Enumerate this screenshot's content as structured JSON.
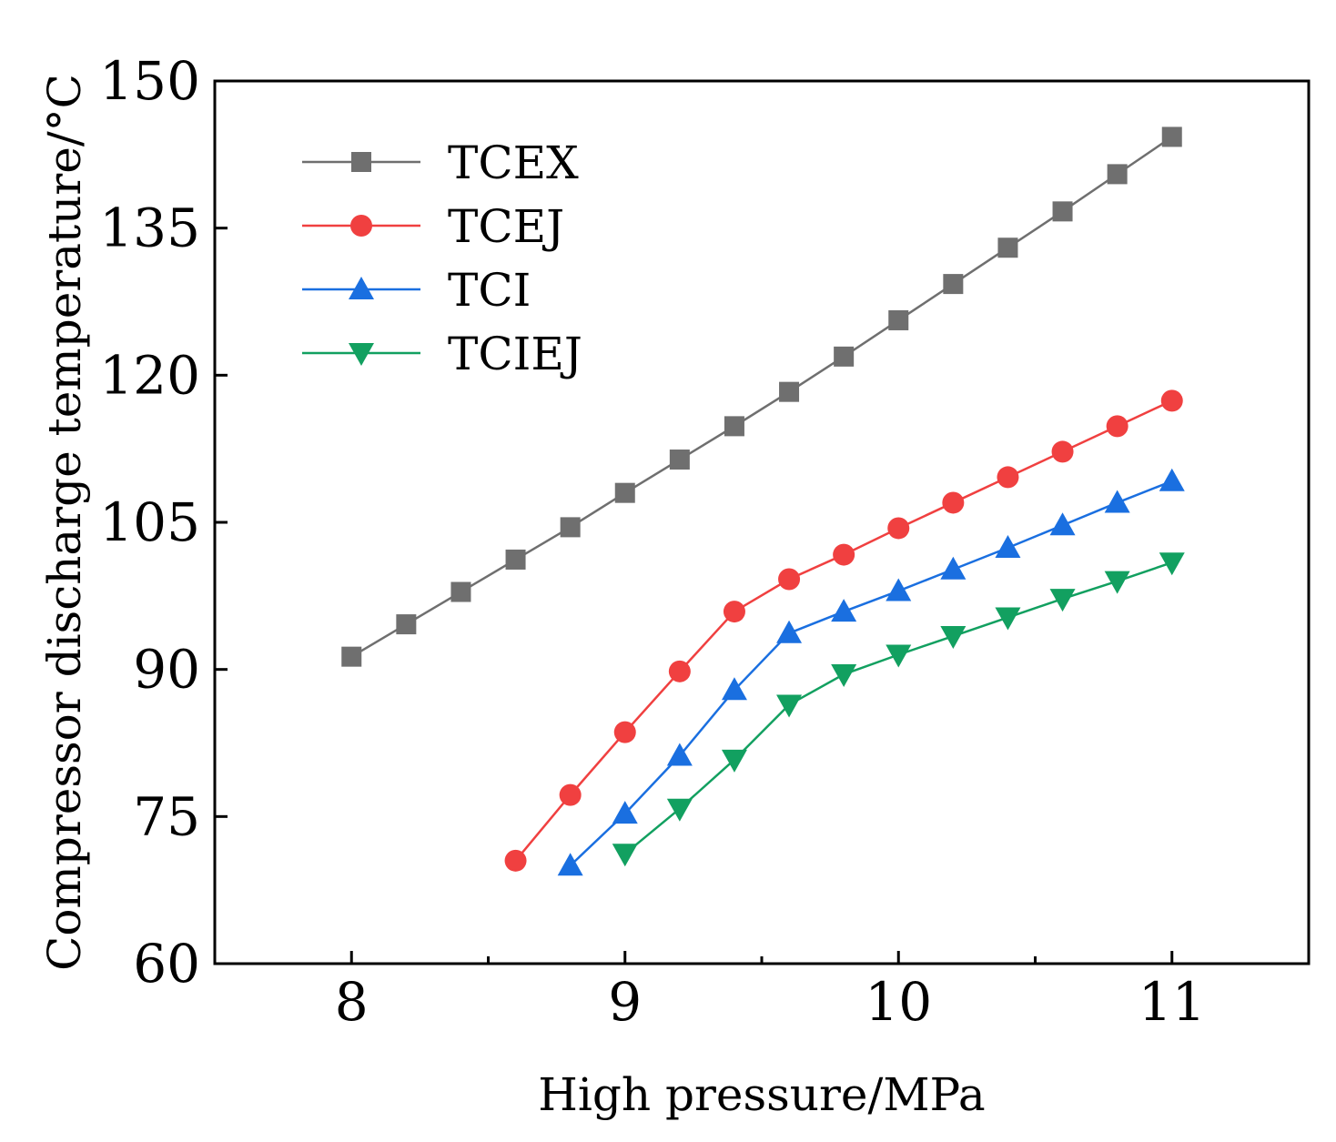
{
  "chart_data": {
    "type": "line",
    "title": "",
    "xlabel": "High pressure/MPa",
    "ylabel": "Compressor discharge temperature/°C",
    "xlim": [
      7.5,
      11.5
    ],
    "ylim": [
      60,
      150
    ],
    "xticks": [
      8,
      9,
      10,
      11
    ],
    "xtick_labels": [
      "8",
      "9",
      "10",
      "11"
    ],
    "x_minor_ticks": [
      8.5,
      9.5,
      10.5
    ],
    "yticks": [
      60,
      75,
      90,
      105,
      120,
      135,
      150
    ],
    "ytick_labels": [
      "60",
      "75",
      "90",
      "105",
      "120",
      "135",
      "150"
    ],
    "grid": false,
    "legend_position": "top-left",
    "series": [
      {
        "name": "TCEX",
        "color": "#6f6f6f",
        "marker": "square",
        "x": [
          8.0,
          8.2,
          8.4,
          8.6,
          8.8,
          9.0,
          9.2,
          9.4,
          9.6,
          9.8,
          10.0,
          10.2,
          10.4,
          10.6,
          10.8,
          11.0
        ],
        "values": [
          91.3,
          94.6,
          97.9,
          101.2,
          104.5,
          108.0,
          111.4,
          114.8,
          118.3,
          121.9,
          125.6,
          129.3,
          133.0,
          136.7,
          140.5,
          144.3
        ]
      },
      {
        "name": "TCEJ",
        "color": "#f04040",
        "marker": "circle",
        "x": [
          8.6,
          8.8,
          9.0,
          9.2,
          9.4,
          9.6,
          9.8,
          10.0,
          10.2,
          10.4,
          10.6,
          10.8,
          11.0
        ],
        "values": [
          70.5,
          77.2,
          83.6,
          89.8,
          95.9,
          99.2,
          101.7,
          104.4,
          107.0,
          109.6,
          112.2,
          114.8,
          117.4
        ]
      },
      {
        "name": "TCI",
        "color": "#1a6fe0",
        "marker": "triangle-up",
        "x": [
          8.8,
          9.0,
          9.2,
          9.4,
          9.6,
          9.8,
          10.0,
          10.2,
          10.4,
          10.6,
          10.8,
          11.0
        ],
        "values": [
          70.0,
          75.3,
          81.2,
          87.9,
          93.7,
          95.9,
          98.0,
          100.2,
          102.4,
          104.7,
          107.0,
          109.2
        ]
      },
      {
        "name": "TCIEJ",
        "color": "#12a060",
        "marker": "triangle-down",
        "x": [
          9.0,
          9.2,
          9.4,
          9.6,
          9.8,
          10.0,
          10.2,
          10.4,
          10.6,
          10.8,
          11.0
        ],
        "values": [
          71.2,
          75.8,
          80.8,
          86.4,
          89.5,
          91.5,
          93.4,
          95.3,
          97.2,
          99.0,
          100.9
        ]
      }
    ]
  }
}
